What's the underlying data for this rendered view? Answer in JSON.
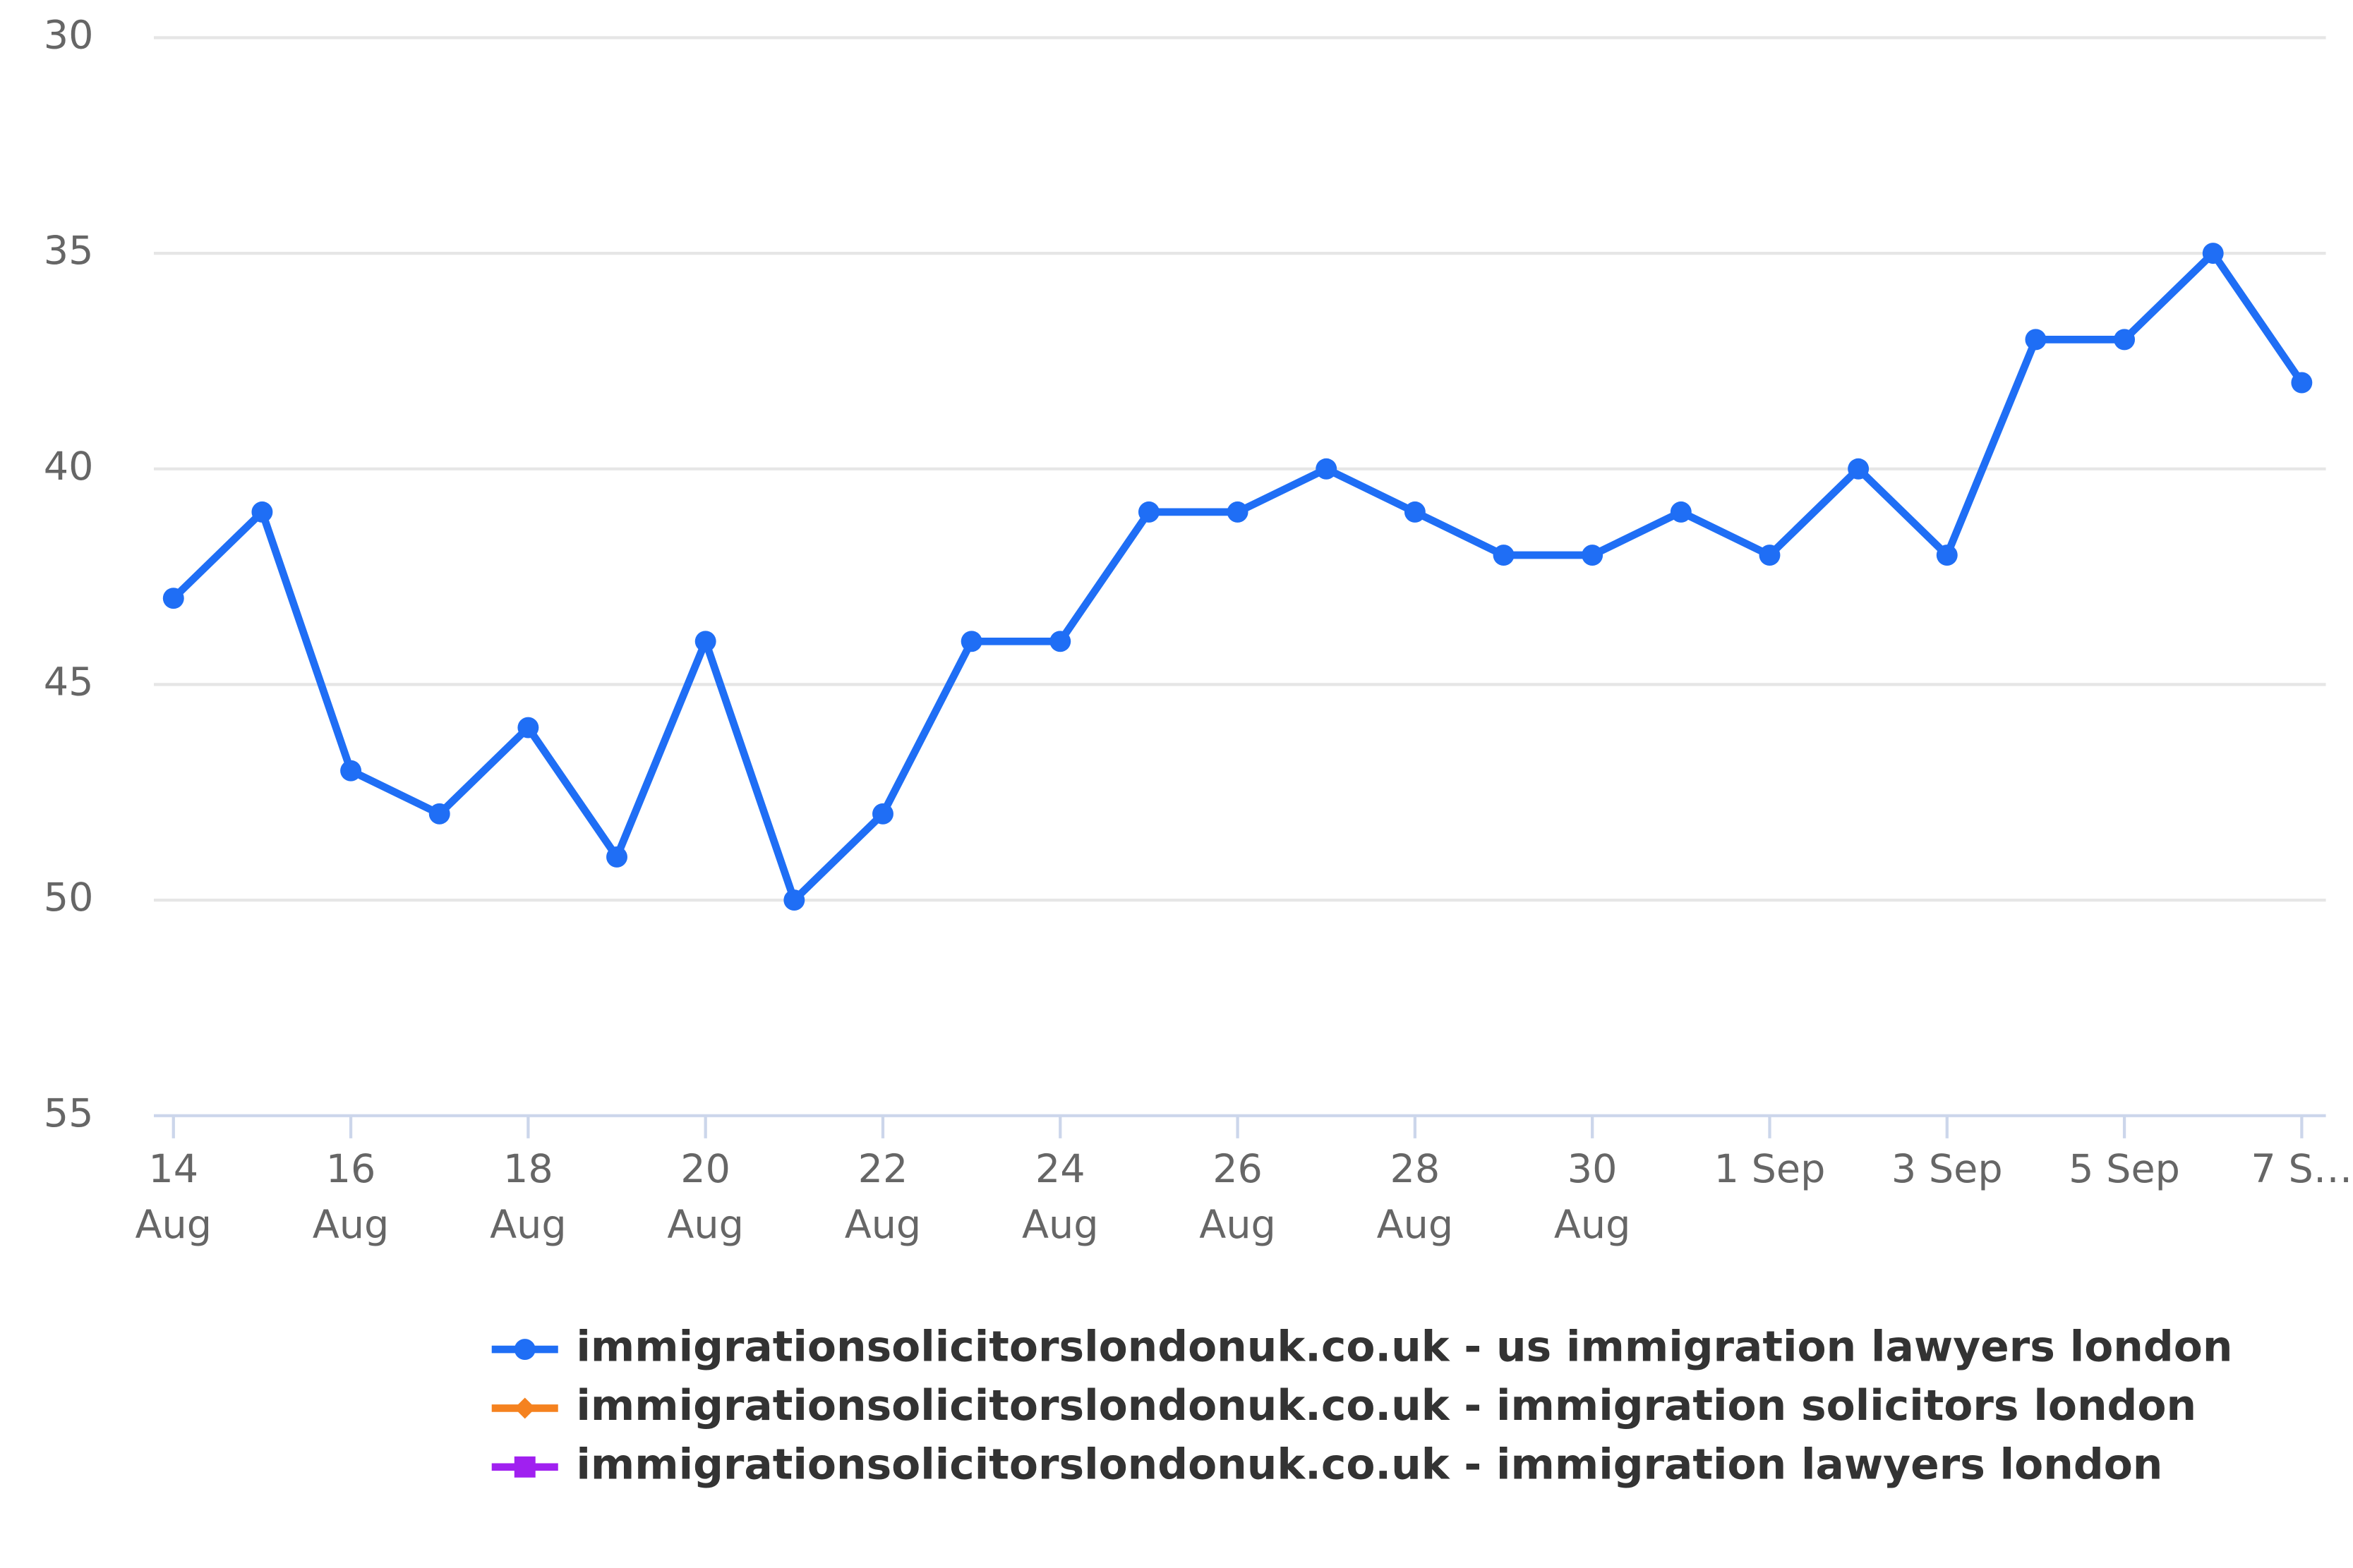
{
  "chart_data": {
    "type": "line",
    "categories": [
      "14\nAug",
      null,
      "16\nAug",
      null,
      "18\nAug",
      null,
      "20\nAug",
      null,
      "22\nAug",
      null,
      "24\nAug",
      null,
      "26\nAug",
      null,
      "28\nAug",
      null,
      "30\nAug",
      null,
      "1 Sep",
      null,
      "3 Sep",
      null,
      "5 Sep",
      null,
      "7 S…"
    ],
    "series": [
      {
        "name": "immigrationsolicitorslondonuk.co.uk - us immigration lawyers london",
        "color": "#1f6ef5",
        "marker": "circle",
        "values": [
          43,
          41,
          47,
          48,
          46,
          49,
          44,
          50,
          48,
          44,
          44,
          41,
          41,
          40,
          41,
          42,
          42,
          41,
          42,
          40,
          42,
          37,
          37,
          35,
          38
        ]
      },
      {
        "name": "immigrationsolicitorslondonuk.co.uk - immigration solicitors london",
        "color": "#f5821f",
        "marker": "diamond",
        "values": [
          null,
          null,
          null,
          null,
          null,
          null,
          null,
          null,
          null,
          null,
          null,
          null,
          null,
          null,
          null,
          null,
          null,
          null,
          null,
          null,
          null,
          null,
          null,
          null,
          null
        ]
      },
      {
        "name": "immigrationsolicitorslondonuk.co.uk - immigration lawyers london",
        "color": "#a020f0",
        "marker": "square",
        "values": [
          null,
          null,
          null,
          null,
          null,
          null,
          null,
          null,
          null,
          null,
          null,
          null,
          null,
          null,
          null,
          null,
          null,
          null,
          null,
          null,
          null,
          null,
          null,
          null,
          null
        ]
      }
    ],
    "ylim": [
      30,
      55
    ],
    "y_reversed": true,
    "yticks": [
      30,
      35,
      40,
      45,
      50,
      55
    ],
    "grid": true,
    "legend": "bottom"
  }
}
